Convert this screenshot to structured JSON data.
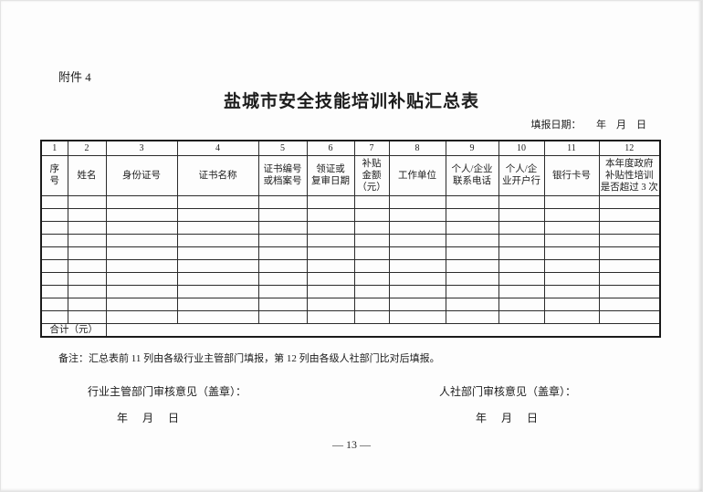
{
  "page": {
    "attachment_label": "附件 4",
    "title": "盐城市安全技能培训补贴汇总表",
    "fill_date": "填报日期：　　年　月　日",
    "note": "备注：汇总表前 11 列由各级行业主管部门填报，第 12 列由各级人社部门比对后填报。",
    "page_number": "— 13 —"
  },
  "table": {
    "column_numbers": [
      "1",
      "2",
      "3",
      "4",
      "5",
      "6",
      "7",
      "8",
      "9",
      "10",
      "11",
      "12"
    ],
    "headers": [
      "序\n号",
      "姓名",
      "身份证号",
      "证书名称",
      "证书编号\n或档案号",
      "领证或\n复审日期",
      "补贴\n金额\n（元）",
      "工作单位",
      "个人/企业\n联系电话",
      "个人/企\n业开户行",
      "银行卡号",
      "本年度政府\n补贴性培训\n是否超过 3 次"
    ],
    "empty_row_count": 10,
    "total_label": "合计（元）",
    "total_value": ""
  },
  "signatures": {
    "industry": {
      "label": "行业主管部门审核意见（盖章）：",
      "date": "年　月　日"
    },
    "hr": {
      "label": "人社部门审核意见（盖章）：",
      "date": "年　月　日"
    }
  }
}
